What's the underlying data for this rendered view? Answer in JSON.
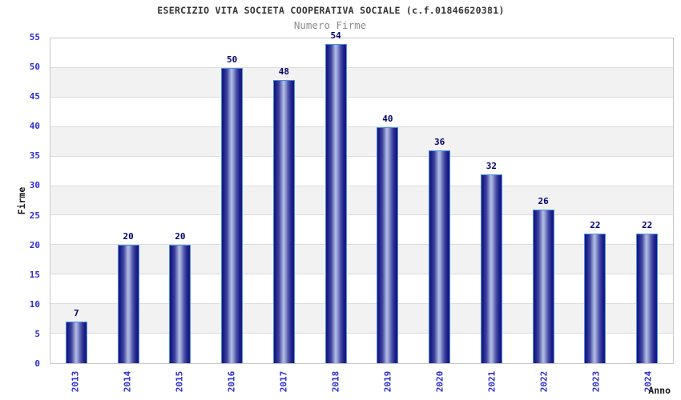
{
  "chart_data": {
    "type": "bar",
    "title": "ESERCIZIO VITA SOCIETA COOPERATIVA SOCIALE (c.f.01846620381)",
    "subtitle": "Numero Firme",
    "xlabel": "Anno",
    "ylabel": "Firme",
    "categories": [
      "2013",
      "2014",
      "2015",
      "2016",
      "2017",
      "2018",
      "2019",
      "2020",
      "2021",
      "2022",
      "2023",
      "2024"
    ],
    "values": [
      7,
      20,
      20,
      50,
      48,
      54,
      40,
      36,
      32,
      26,
      22,
      22
    ],
    "ylim": [
      0,
      55
    ],
    "ytick_step": 5,
    "grid": true,
    "legend": "none",
    "band_pattern": "alternating white/gray horizontal stripes every 5 units, gray on 5-10, 15-20, 25-30, 35-40, 45-50"
  },
  "colors": {
    "tick_label": "#2d2dd2",
    "value_label": "#00006e",
    "title": "#333333",
    "subtitle": "#8c8c8c",
    "axis_title": "#1a1a1a",
    "plot_border": "#c9c9c9",
    "grid_line": "#dcdcdc",
    "band_gray": "#f2f2f2",
    "band_white": "#ffffff",
    "bar_border": "#4a90e8",
    "bar_dark": "#16167a",
    "bar_mid": "#4a52a8",
    "bar_light": "#b4bce4",
    "background": "#ffffff"
  }
}
